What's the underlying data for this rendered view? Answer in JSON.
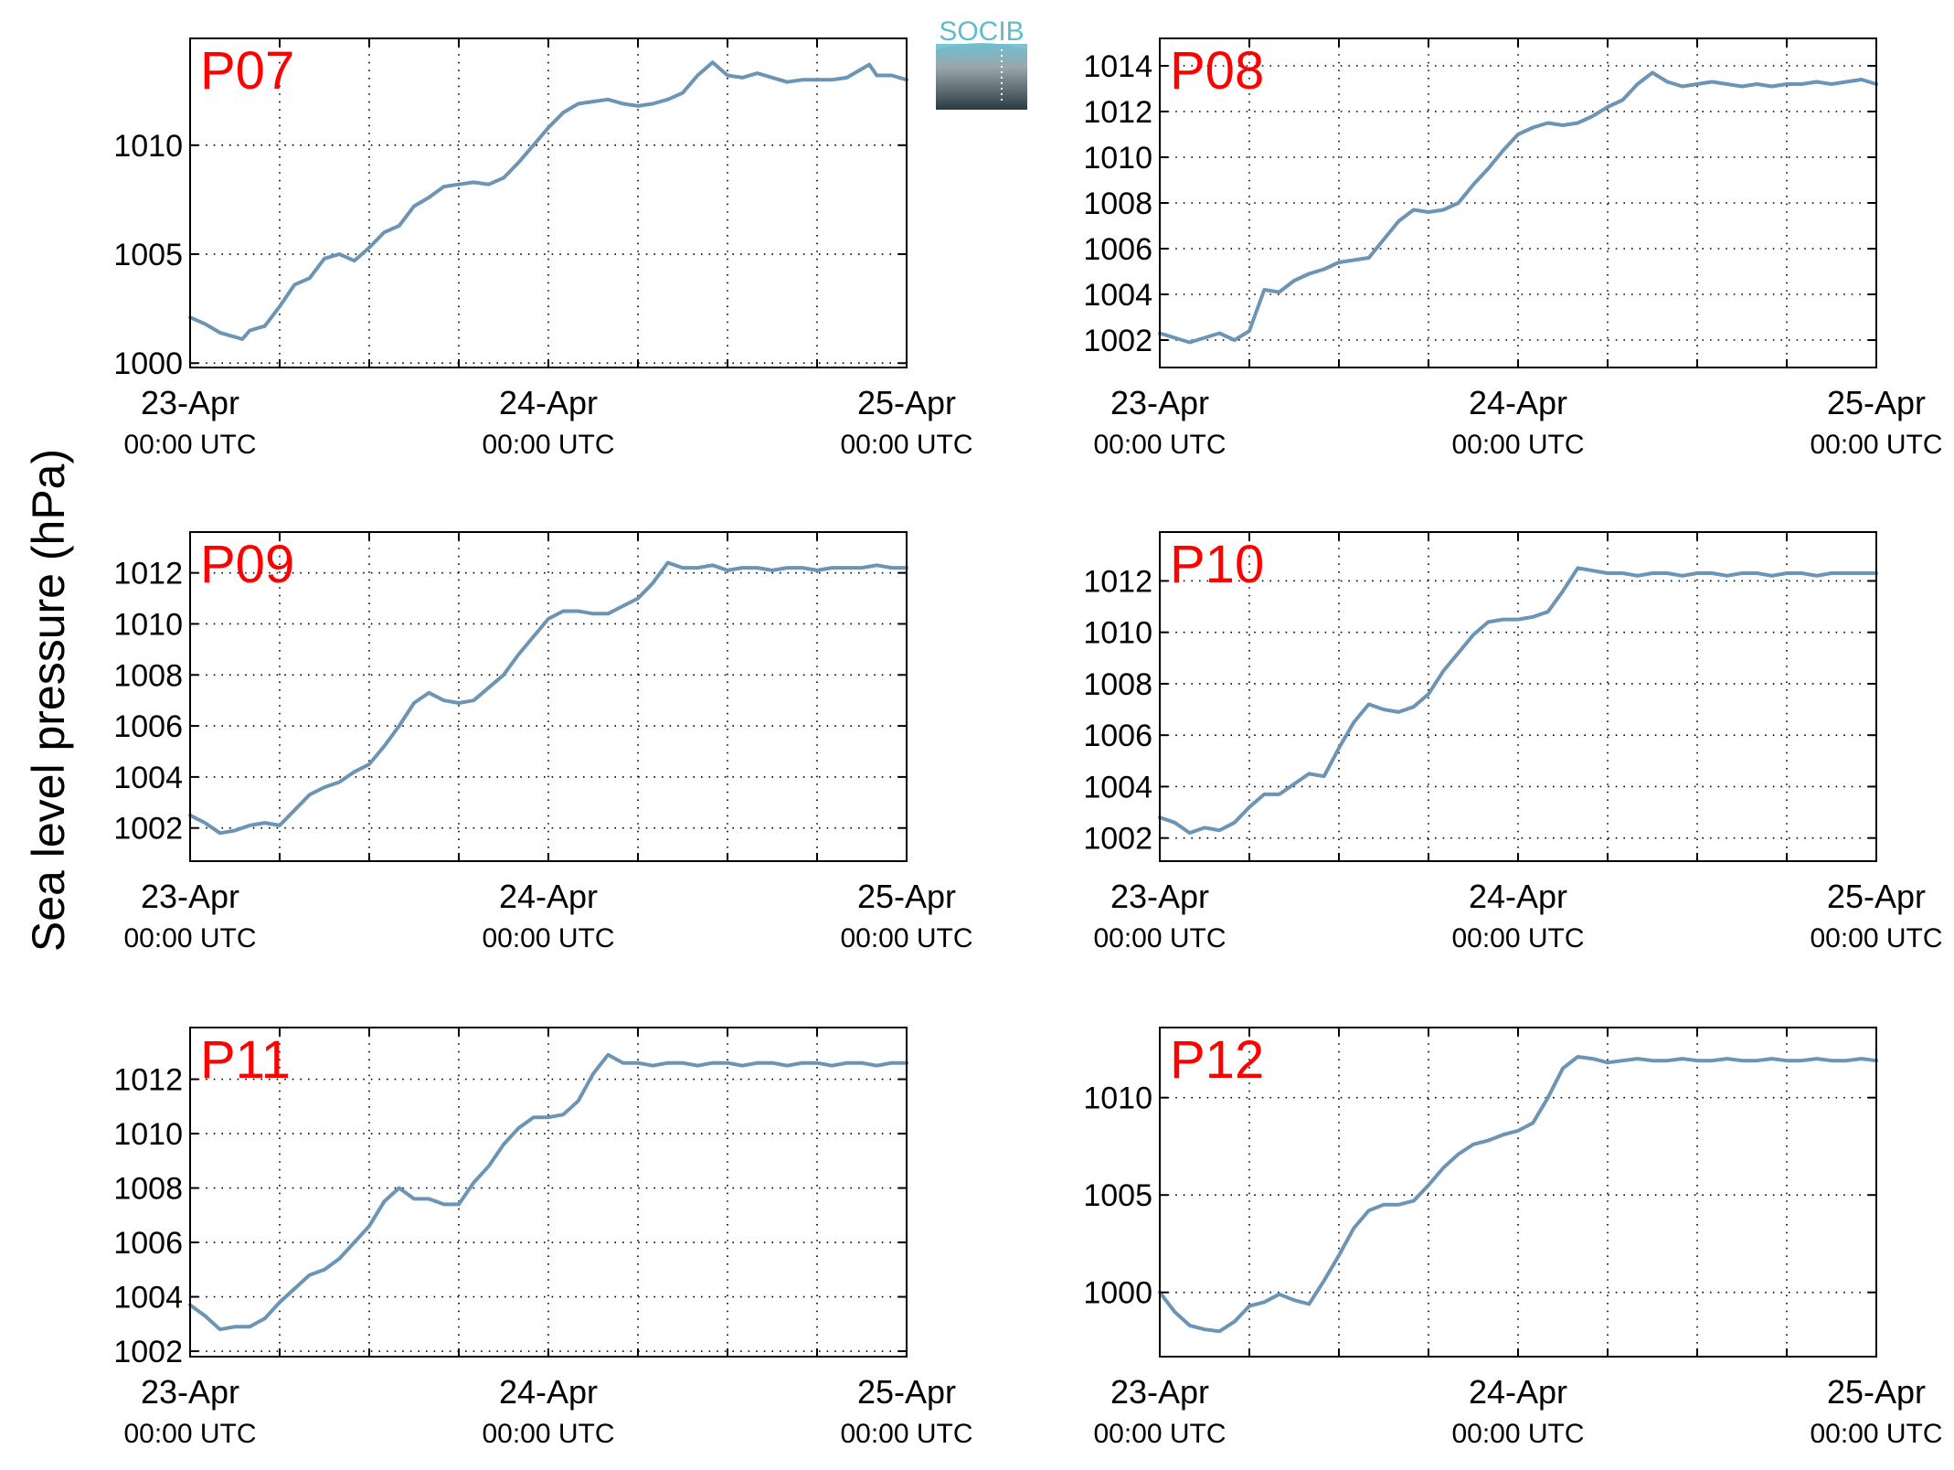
{
  "figure": {
    "ylabel": "Sea level pressure (hPa)",
    "logo_text": "SOCIB",
    "line_color": "#6b94b5",
    "label_color": "#ff0000",
    "x_tick_labels": [
      {
        "date": "23-Apr",
        "time": "00:00 UTC"
      },
      {
        "date": "24-Apr",
        "time": "00:00 UTC"
      },
      {
        "date": "25-Apr",
        "time": "00:00 UTC"
      }
    ]
  },
  "chart_data": [
    {
      "type": "line",
      "title": "P07",
      "x_unit": "hours since 23-Apr 00:00 UTC",
      "xlim": [
        0,
        48
      ],
      "ylim": [
        999.8,
        1014.9
      ],
      "yticks": [
        1000,
        1005,
        1010
      ],
      "grid": true,
      "x": [
        0,
        1,
        2,
        3,
        3.5,
        4,
        5,
        6,
        7,
        8,
        9,
        10,
        11,
        12,
        13,
        14,
        15,
        16,
        17,
        18,
        19,
        20,
        21,
        22,
        23,
        24,
        25,
        26,
        27,
        28,
        29,
        30,
        31,
        32,
        33,
        34,
        35,
        36,
        37,
        38,
        39,
        40,
        41,
        42,
        43,
        44,
        45,
        45.5,
        46,
        47,
        48
      ],
      "values": [
        1002.1,
        1001.8,
        1001.4,
        1001.2,
        1001.1,
        1001.5,
        1001.7,
        1002.6,
        1003.6,
        1003.9,
        1004.8,
        1005.0,
        1004.7,
        1005.3,
        1006.0,
        1006.3,
        1007.2,
        1007.6,
        1008.1,
        1008.2,
        1008.3,
        1008.2,
        1008.5,
        1009.2,
        1010.0,
        1010.8,
        1011.5,
        1011.9,
        1012.0,
        1012.1,
        1011.9,
        1011.8,
        1011.9,
        1012.1,
        1012.4,
        1013.2,
        1013.8,
        1013.2,
        1013.1,
        1013.3,
        1013.1,
        1012.9,
        1013.0,
        1013.0,
        1013.0,
        1013.1,
        1013.5,
        1013.7,
        1013.2,
        1013.2,
        1013.0
      ]
    },
    {
      "type": "line",
      "title": "P08",
      "x_unit": "hours since 23-Apr 00:00 UTC",
      "xlim": [
        0,
        48
      ],
      "ylim": [
        1000.8,
        1015.2
      ],
      "yticks": [
        1002,
        1004,
        1006,
        1008,
        1010,
        1012,
        1014
      ],
      "grid": true,
      "x": [
        0,
        1,
        2,
        3,
        4,
        5,
        6,
        7,
        8,
        9,
        10,
        11,
        12,
        13,
        14,
        15,
        16,
        17,
        18,
        19,
        20,
        21,
        22,
        23,
        24,
        25,
        26,
        27,
        28,
        29,
        30,
        31,
        32,
        33,
        34,
        35,
        36,
        37,
        38,
        39,
        40,
        41,
        42,
        43,
        44,
        45,
        46,
        47,
        48
      ],
      "values": [
        1002.3,
        1002.1,
        1001.9,
        1002.1,
        1002.3,
        1002.0,
        1002.4,
        1004.2,
        1004.1,
        1004.6,
        1004.9,
        1005.1,
        1005.4,
        1005.5,
        1005.6,
        1006.4,
        1007.2,
        1007.7,
        1007.6,
        1007.7,
        1008.0,
        1008.8,
        1009.5,
        1010.3,
        1011.0,
        1011.3,
        1011.5,
        1011.4,
        1011.5,
        1011.8,
        1012.2,
        1012.5,
        1013.2,
        1013.7,
        1013.3,
        1013.1,
        1013.2,
        1013.3,
        1013.2,
        1013.1,
        1013.2,
        1013.1,
        1013.2,
        1013.2,
        1013.3,
        1013.2,
        1013.3,
        1013.4,
        1013.2
      ]
    },
    {
      "type": "line",
      "title": "P09",
      "x_unit": "hours since 23-Apr 00:00 UTC",
      "xlim": [
        0,
        48
      ],
      "ylim": [
        1000.7,
        1013.6
      ],
      "yticks": [
        1002,
        1004,
        1006,
        1008,
        1010,
        1012
      ],
      "grid": true,
      "x": [
        0,
        1,
        2,
        3,
        4,
        5,
        6,
        7,
        8,
        9,
        10,
        11,
        12,
        13,
        14,
        15,
        16,
        17,
        18,
        19,
        20,
        21,
        22,
        23,
        24,
        25,
        26,
        27,
        28,
        29,
        30,
        31,
        32,
        33,
        34,
        35,
        36,
        37,
        38,
        39,
        40,
        41,
        42,
        43,
        44,
        45,
        46,
        47,
        48
      ],
      "values": [
        1002.5,
        1002.2,
        1001.8,
        1001.9,
        1002.1,
        1002.2,
        1002.1,
        1002.7,
        1003.3,
        1003.6,
        1003.8,
        1004.2,
        1004.5,
        1005.2,
        1006.0,
        1006.9,
        1007.3,
        1007.0,
        1006.9,
        1007.0,
        1007.5,
        1008.0,
        1008.8,
        1009.5,
        1010.2,
        1010.5,
        1010.5,
        1010.4,
        1010.4,
        1010.7,
        1011.0,
        1011.6,
        1012.4,
        1012.2,
        1012.2,
        1012.3,
        1012.1,
        1012.2,
        1012.2,
        1012.1,
        1012.2,
        1012.2,
        1012.1,
        1012.2,
        1012.2,
        1012.2,
        1012.3,
        1012.2,
        1012.2
      ]
    },
    {
      "type": "line",
      "title": "P10",
      "x_unit": "hours since 23-Apr 00:00 UTC",
      "xlim": [
        0,
        48
      ],
      "ylim": [
        1001.1,
        1013.9
      ],
      "yticks": [
        1002,
        1004,
        1006,
        1008,
        1010,
        1012
      ],
      "grid": true,
      "x": [
        0,
        1,
        2,
        3,
        4,
        5,
        6,
        7,
        8,
        9,
        10,
        11,
        12,
        13,
        14,
        15,
        16,
        17,
        18,
        19,
        20,
        21,
        22,
        23,
        24,
        25,
        26,
        27,
        28,
        29,
        30,
        31,
        32,
        33,
        34,
        35,
        36,
        37,
        38,
        39,
        40,
        41,
        42,
        43,
        44,
        45,
        46,
        47,
        48
      ],
      "values": [
        1002.8,
        1002.6,
        1002.2,
        1002.4,
        1002.3,
        1002.6,
        1003.2,
        1003.7,
        1003.7,
        1004.1,
        1004.5,
        1004.4,
        1005.5,
        1006.5,
        1007.2,
        1007.0,
        1006.9,
        1007.1,
        1007.6,
        1008.5,
        1009.2,
        1009.9,
        1010.4,
        1010.5,
        1010.5,
        1010.6,
        1010.8,
        1011.6,
        1012.5,
        1012.4,
        1012.3,
        1012.3,
        1012.2,
        1012.3,
        1012.3,
        1012.2,
        1012.3,
        1012.3,
        1012.2,
        1012.3,
        1012.3,
        1012.2,
        1012.3,
        1012.3,
        1012.2,
        1012.3,
        1012.3,
        1012.3,
        1012.3
      ]
    },
    {
      "type": "line",
      "title": "P11",
      "x_unit": "hours since 23-Apr 00:00 UTC",
      "xlim": [
        0,
        48
      ],
      "ylim": [
        1001.8,
        1013.9
      ],
      "yticks": [
        1002,
        1004,
        1006,
        1008,
        1010,
        1012
      ],
      "grid": true,
      "x": [
        0,
        1,
        2,
        3,
        4,
        5,
        6,
        7,
        8,
        9,
        10,
        11,
        12,
        13,
        14,
        15,
        16,
        17,
        18,
        19,
        20,
        21,
        22,
        23,
        24,
        25,
        26,
        27,
        28,
        29,
        30,
        31,
        32,
        33,
        34,
        35,
        36,
        37,
        38,
        39,
        40,
        41,
        42,
        43,
        44,
        45,
        46,
        47,
        48
      ],
      "values": [
        1003.7,
        1003.3,
        1002.8,
        1002.9,
        1002.9,
        1003.2,
        1003.8,
        1004.3,
        1004.8,
        1005.0,
        1005.4,
        1006.0,
        1006.6,
        1007.5,
        1008.0,
        1007.6,
        1007.6,
        1007.4,
        1007.4,
        1008.2,
        1008.8,
        1009.6,
        1010.2,
        1010.6,
        1010.6,
        1010.7,
        1011.2,
        1012.2,
        1012.9,
        1012.6,
        1012.6,
        1012.5,
        1012.6,
        1012.6,
        1012.5,
        1012.6,
        1012.6,
        1012.5,
        1012.6,
        1012.6,
        1012.5,
        1012.6,
        1012.6,
        1012.5,
        1012.6,
        1012.6,
        1012.5,
        1012.6,
        1012.6
      ]
    },
    {
      "type": "line",
      "title": "P12",
      "x_unit": "hours since 23-Apr 00:00 UTC",
      "xlim": [
        0,
        48
      ],
      "ylim": [
        996.7,
        1013.6
      ],
      "yticks": [
        1000,
        1005,
        1010
      ],
      "grid": true,
      "x": [
        0,
        1,
        2,
        3,
        4,
        5,
        6,
        7,
        8,
        9,
        10,
        11,
        12,
        13,
        14,
        15,
        16,
        17,
        18,
        19,
        20,
        21,
        22,
        23,
        24,
        25,
        26,
        27,
        28,
        29,
        30,
        31,
        32,
        33,
        34,
        35,
        36,
        37,
        38,
        39,
        40,
        41,
        42,
        43,
        44,
        45,
        46,
        47,
        48
      ],
      "values": [
        1000.0,
        999.0,
        998.3,
        998.1,
        998.0,
        998.5,
        999.3,
        999.5,
        999.9,
        999.6,
        999.4,
        1000.6,
        1001.9,
        1003.3,
        1004.2,
        1004.5,
        1004.5,
        1004.7,
        1005.5,
        1006.4,
        1007.1,
        1007.6,
        1007.8,
        1008.1,
        1008.3,
        1008.7,
        1010.0,
        1011.5,
        1012.1,
        1012.0,
        1011.8,
        1011.9,
        1012.0,
        1011.9,
        1011.9,
        1012.0,
        1011.9,
        1011.9,
        1012.0,
        1011.9,
        1011.9,
        1012.0,
        1011.9,
        1011.9,
        1012.0,
        1011.9,
        1011.9,
        1012.0,
        1011.9
      ]
    }
  ]
}
